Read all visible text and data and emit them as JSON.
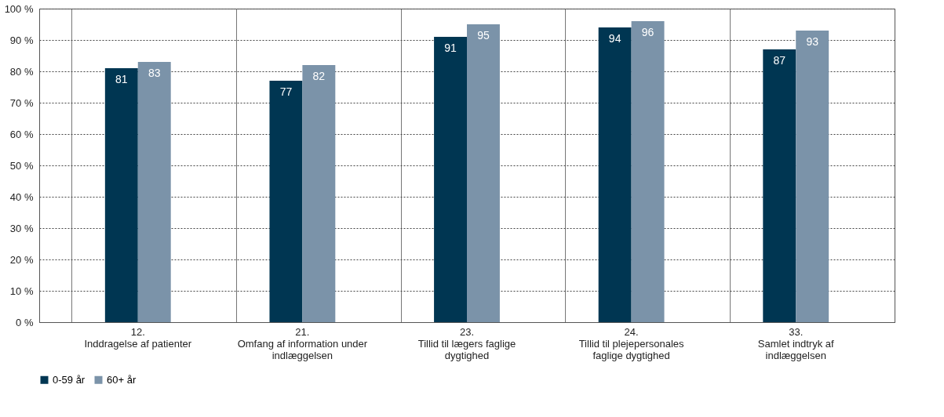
{
  "chart_data": {
    "type": "bar",
    "categories": [
      "12.\nInddragelse af patienter",
      "21.\nOmfang af information under\nindlæggelsen",
      "23.\nTillid til lægers faglige\ndygtighed",
      "24.\nTillid til plejepersonales\nfaglige dygtighed",
      "33.\nSamlet indtryk af\nindlæggelsen"
    ],
    "series": [
      {
        "name": "0-59 år",
        "color": "#003652",
        "values": [
          81,
          77,
          91,
          94,
          87
        ]
      },
      {
        "name": "60+ år",
        "color": "#7b93a9",
        "values": [
          83,
          82,
          95,
          96,
          93
        ]
      }
    ],
    "ylim": [
      0,
      100
    ],
    "yticks": [
      {
        "value": 0,
        "label": "0 %"
      },
      {
        "value": 10,
        "label": "10 %"
      },
      {
        "value": 20,
        "label": "20 %"
      },
      {
        "value": 30,
        "label": "30 %"
      },
      {
        "value": 40,
        "label": "40 %"
      },
      {
        "value": 50,
        "label": "50 %"
      },
      {
        "value": 60,
        "label": "60 %"
      },
      {
        "value": 70,
        "label": "70 %"
      },
      {
        "value": 80,
        "label": "80 %"
      },
      {
        "value": 90,
        "label": "90 %"
      },
      {
        "value": 100,
        "label": "100 %"
      }
    ],
    "grid": "y",
    "legend": "bottom",
    "data_labels": true
  }
}
